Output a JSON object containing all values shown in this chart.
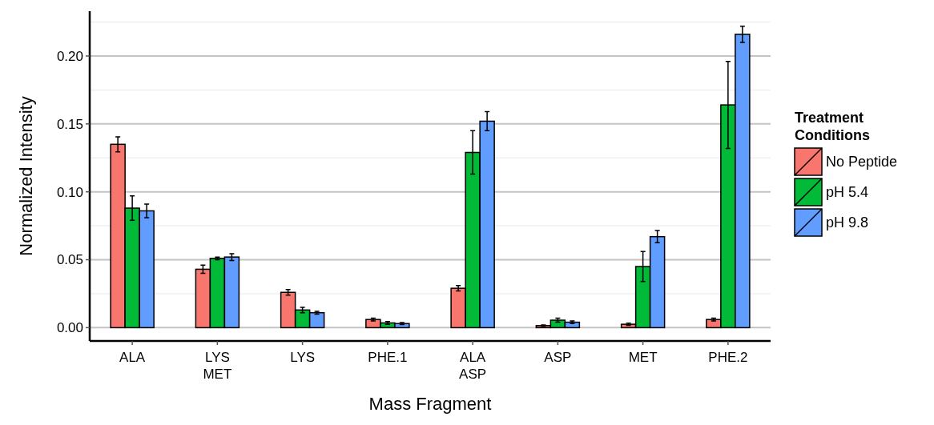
{
  "chart_data": {
    "type": "bar",
    "xlabel": "Mass Fragment",
    "ylabel": "Normalized Intensity",
    "legend_title": "Treatment Conditions",
    "categories": [
      "ALA",
      "LYS\nMET",
      "LYS",
      "PHE.1",
      "ALA\nASP",
      "ASP",
      "MET",
      "PHE.2"
    ],
    "series": [
      {
        "name": "No Peptide",
        "color": "#f8766d",
        "values": [
          0.135,
          0.043,
          0.026,
          0.006,
          0.029,
          0.0015,
          0.0025,
          0.006
        ],
        "errors": [
          0.0055,
          0.003,
          0.002,
          0.001,
          0.002,
          0.0005,
          0.0008,
          0.001
        ]
      },
      {
        "name": "pH 5.4",
        "color": "#00ba38",
        "values": [
          0.088,
          0.051,
          0.013,
          0.0035,
          0.129,
          0.0055,
          0.045,
          0.164
        ],
        "errors": [
          0.009,
          0.001,
          0.002,
          0.001,
          0.016,
          0.0015,
          0.011,
          0.032
        ]
      },
      {
        "name": "pH 9.8",
        "color": "#619cff",
        "values": [
          0.086,
          0.052,
          0.011,
          0.003,
          0.152,
          0.004,
          0.067,
          0.216
        ],
        "errors": [
          0.005,
          0.0025,
          0.001,
          0.0007,
          0.007,
          0.001,
          0.0045,
          0.006
        ]
      }
    ],
    "ylim": [
      -0.0098,
      0.233
    ],
    "yticks": [
      {
        "value": 0,
        "label": "0.00"
      },
      {
        "value": 0.05,
        "label": "0.05"
      },
      {
        "value": 0.1,
        "label": "0.10"
      },
      {
        "value": 0.15,
        "label": "0.15"
      },
      {
        "value": 0.2,
        "label": "0.20"
      }
    ],
    "grid": "y",
    "legend": "right"
  }
}
